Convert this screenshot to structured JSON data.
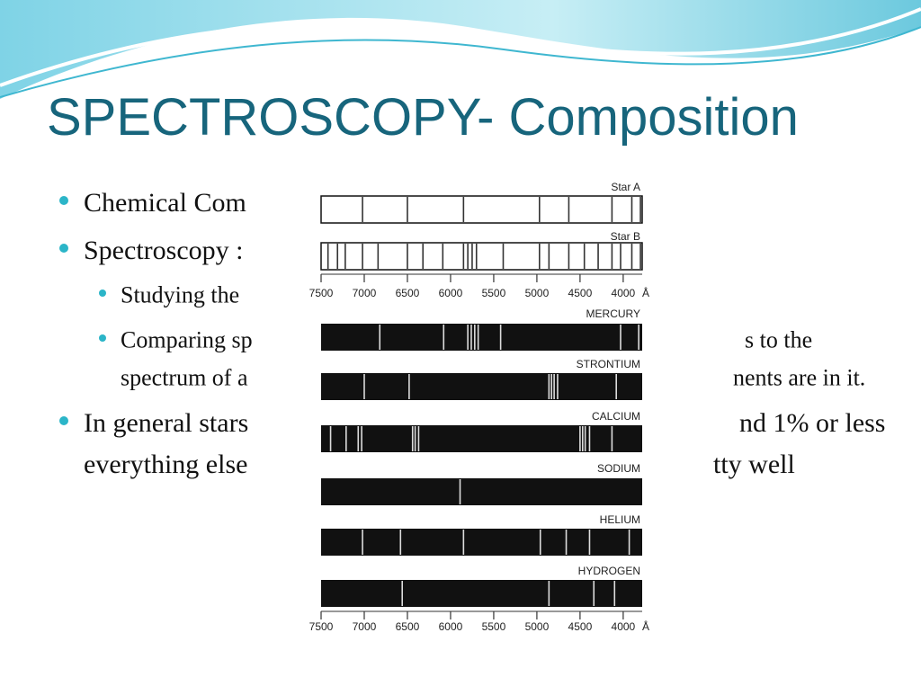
{
  "title": "SPECTROSCOPY- Composition",
  "bullets": [
    {
      "level": 1,
      "lines": [
        {
          "left": "Chemical Com"
        }
      ]
    },
    {
      "level": 1,
      "lines": [
        {
          "left": "Spectroscopy :"
        }
      ]
    },
    {
      "level": 2,
      "lines": [
        {
          "left": "Studying the"
        }
      ]
    },
    {
      "level": 2,
      "lines": [
        {
          "left": "Comparing sp",
          "right": "s to the"
        },
        {
          "left": "spectrum of a",
          "right": "nents are in it."
        }
      ]
    },
    {
      "level": 1,
      "lines": [
        {
          "left": "In general stars",
          "right": "nd 1% or less"
        },
        {
          "left": "everything else",
          "right": "tty well"
        }
      ]
    }
  ],
  "figure": {
    "xlim": [
      7500,
      3780
    ],
    "ticks": [
      7500,
      7000,
      6500,
      6000,
      5500,
      5000,
      4500,
      4000
    ],
    "unit": "Å",
    "spectra": [
      {
        "name": "Star A",
        "style": "absorption",
        "lines": [
          7020,
          6500,
          5850,
          4970,
          4630,
          4130,
          3900,
          3800
        ]
      },
      {
        "name": "Star B",
        "style": "absorption",
        "lines": [
          7420,
          7310,
          7220,
          7020,
          6840,
          6500,
          6320,
          6090,
          5850,
          5800,
          5750,
          5700,
          5390,
          4970,
          4860,
          4630,
          4450,
          4290,
          4130,
          4030,
          3900,
          3800
        ]
      },
      {
        "name": "MERCURY",
        "style": "emission",
        "lines": [
          6820,
          6080,
          5800,
          5760,
          5720,
          5680,
          5420,
          4030,
          3820
        ]
      },
      {
        "name": "STRONTIUM",
        "style": "emission",
        "lines": [
          7000,
          6480,
          4860,
          4830,
          4800,
          4760,
          4080
        ]
      },
      {
        "name": "CALCIUM",
        "style": "emission",
        "lines": [
          7390,
          7210,
          7070,
          7030,
          6440,
          6410,
          6370,
          4500,
          4470,
          4440,
          4390,
          4130
        ]
      },
      {
        "name": "SODIUM",
        "style": "emission",
        "lines": [
          5890
        ]
      },
      {
        "name": "HELIUM",
        "style": "emission",
        "lines": [
          7020,
          6580,
          5850,
          4960,
          4660,
          4390,
          3930
        ]
      },
      {
        "name": "HYDROGEN",
        "style": "emission",
        "lines": [
          6560,
          4860,
          4340,
          4100
        ]
      }
    ]
  }
}
